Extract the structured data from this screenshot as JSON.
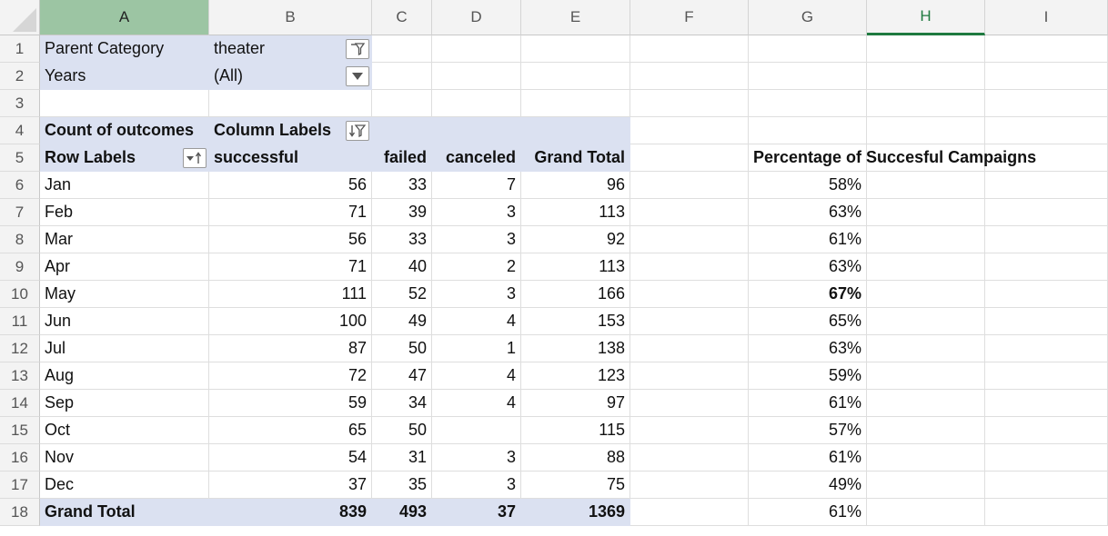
{
  "columns": [
    "A",
    "B",
    "C",
    "D",
    "E",
    "F",
    "G",
    "H",
    "I"
  ],
  "rows": [
    "1",
    "2",
    "3",
    "4",
    "5",
    "6",
    "7",
    "8",
    "9",
    "10",
    "11",
    "12",
    "13",
    "14",
    "15",
    "16",
    "17",
    "18"
  ],
  "filters": {
    "parent_category_label": "Parent Category",
    "parent_category_value": "theater",
    "years_label": "Years",
    "years_value": "(All)"
  },
  "pivot": {
    "count_label": "Count of outcomes",
    "column_labels": "Column Labels",
    "row_labels": "Row Labels",
    "headers": [
      "successful",
      "failed",
      "canceled",
      "Grand Total"
    ],
    "months": [
      {
        "m": "Jan",
        "s": "56",
        "f": "33",
        "c": "7",
        "t": "96"
      },
      {
        "m": "Feb",
        "s": "71",
        "f": "39",
        "c": "3",
        "t": "113"
      },
      {
        "m": "Mar",
        "s": "56",
        "f": "33",
        "c": "3",
        "t": "92"
      },
      {
        "m": "Apr",
        "s": "71",
        "f": "40",
        "c": "2",
        "t": "113"
      },
      {
        "m": "May",
        "s": "111",
        "f": "52",
        "c": "3",
        "t": "166"
      },
      {
        "m": "Jun",
        "s": "100",
        "f": "49",
        "c": "4",
        "t": "153"
      },
      {
        "m": "Jul",
        "s": "87",
        "f": "50",
        "c": "1",
        "t": "138"
      },
      {
        "m": "Aug",
        "s": "72",
        "f": "47",
        "c": "4",
        "t": "123"
      },
      {
        "m": "Sep",
        "s": "59",
        "f": "34",
        "c": "4",
        "t": "97"
      },
      {
        "m": "Oct",
        "s": "65",
        "f": "50",
        "c": "",
        "t": "115"
      },
      {
        "m": "Nov",
        "s": "54",
        "f": "31",
        "c": "3",
        "t": "88"
      },
      {
        "m": "Dec",
        "s": "37",
        "f": "35",
        "c": "3",
        "t": "75"
      }
    ],
    "grand_total": {
      "m": "Grand Total",
      "s": "839",
      "f": "493",
      "c": "37",
      "t": "1369"
    }
  },
  "percent": {
    "header": "Percentage of Succesful Campaigns",
    "values": [
      "58%",
      "63%",
      "61%",
      "63%",
      "67%",
      "65%",
      "63%",
      "59%",
      "61%",
      "57%",
      "61%",
      "49%",
      "61%"
    ]
  },
  "icons": {
    "filter_active": "filter-active-icon",
    "dropdown": "dropdown-arrow-icon",
    "sort_filter": "sort-filter-icon"
  },
  "colors": {
    "pivot_fill": "#dbe1f1",
    "selected_col": "#9cc5a3",
    "active_col": "#1f7a3f"
  }
}
